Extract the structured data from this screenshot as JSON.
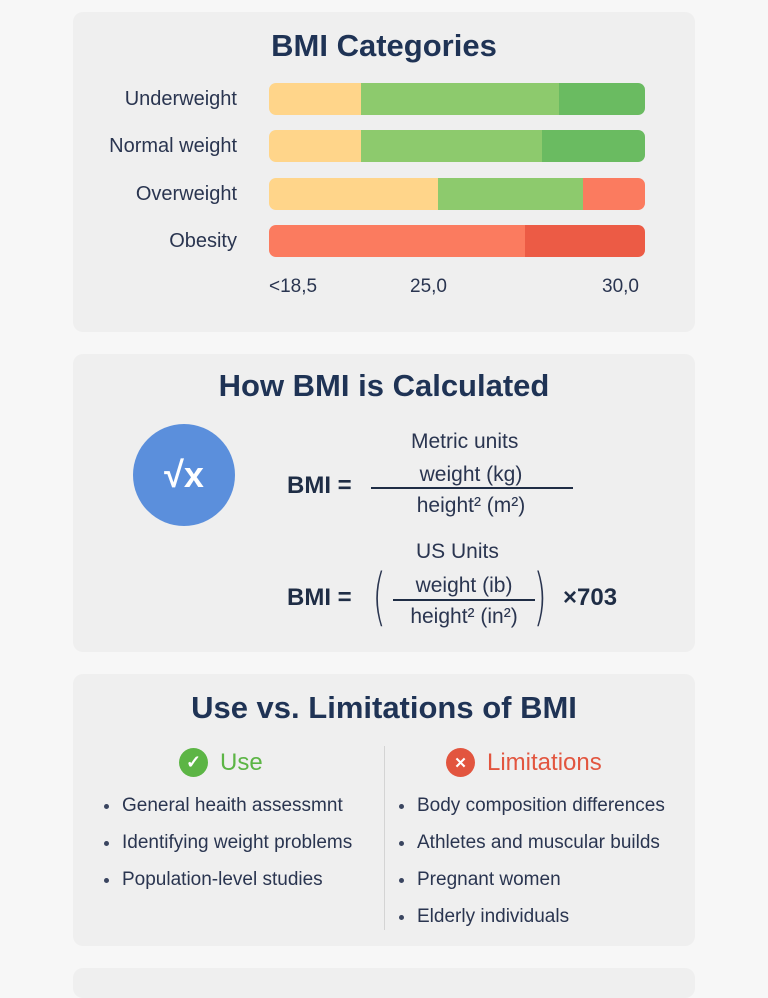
{
  "chart_data": {
    "type": "bar",
    "title": "BMI Categories",
    "categories": [
      "Underweight",
      "Normal weight",
      "Overweight",
      "Obesity"
    ],
    "x_tick_labels": [
      "<18,5",
      "25,0",
      "30,0"
    ],
    "bars": [
      {
        "category": "Underweight",
        "segments": [
          {
            "share": 0.245,
            "color": "#ffd58a"
          },
          {
            "share": 0.525,
            "color": "#8dca6d"
          },
          {
            "share": 0.23,
            "color": "#6abb61"
          }
        ]
      },
      {
        "category": "Normal weight",
        "segments": [
          {
            "share": 0.245,
            "color": "#ffd58a"
          },
          {
            "share": 0.48,
            "color": "#8dca6d"
          },
          {
            "share": 0.275,
            "color": "#6abb61"
          }
        ]
      },
      {
        "category": "Overweight",
        "segments": [
          {
            "share": 0.45,
            "color": "#ffd58a"
          },
          {
            "share": 0.385,
            "color": "#8dca6d"
          },
          {
            "share": 0.165,
            "color": "#fb7b5f"
          }
        ]
      },
      {
        "category": "Obesity",
        "segments": [
          {
            "share": 0.68,
            "color": "#fb7b5f"
          },
          {
            "share": 0.32,
            "color": "#ec5b45"
          }
        ]
      }
    ]
  },
  "calc": {
    "title": "How BMI is Calculated",
    "icon": "square-root-icon",
    "icon_text": "√x",
    "metric_label": "Metric units",
    "metric_lhs": "BMI =",
    "metric_numerator": "weight (kg)",
    "metric_denominator": "height² (m²)",
    "us_label": "US Units",
    "us_lhs": "BMI =",
    "us_numerator": "weight (ib)",
    "us_denominator": "height² (in²)",
    "us_multiplier": "×703",
    "paren_left": "(",
    "paren_right": ")"
  },
  "usage": {
    "title": "Use vs. Limitations of BMI",
    "use_heading": "Use",
    "use_icon": "check-icon",
    "use_icon_text": "✓",
    "use_color": "#5cb545",
    "limit_heading": "Limitations",
    "limit_icon": "x-icon",
    "limit_icon_text": "✕",
    "limit_color": "#e2553f",
    "use_items": [
      "General heaith assessmnt",
      "Identifying weight problems",
      "Population-level studies"
    ],
    "limit_items": [
      "Body composition differences",
      "Athletes and muscular builds",
      "Pregnant women",
      "Elderly individuals"
    ]
  }
}
